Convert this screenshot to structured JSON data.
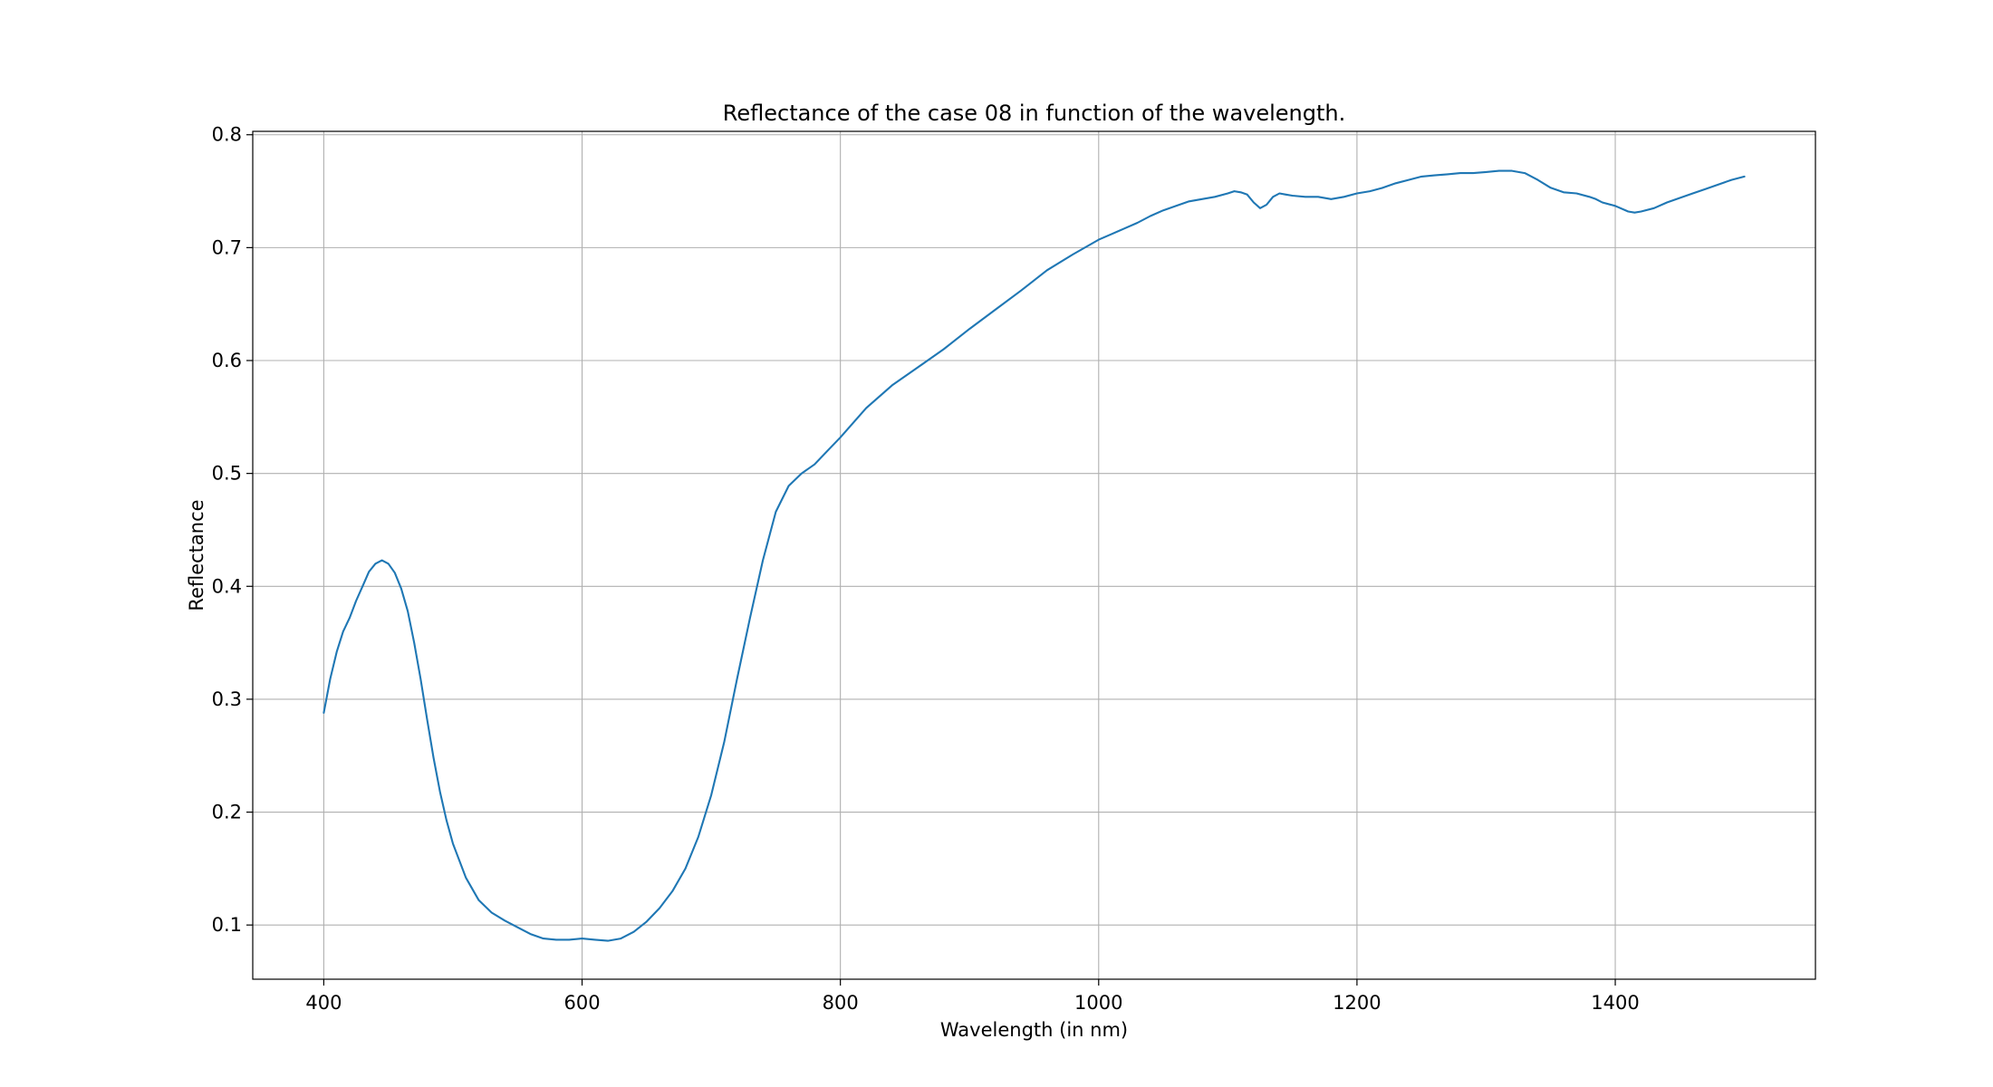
{
  "chart_data": {
    "type": "line",
    "title": "Reflectance of the case 08 in function of the wavelength.",
    "xlabel": "Wavelength (in nm)",
    "ylabel": "Reflectance",
    "xlim": [
      345,
      1555
    ],
    "ylim": [
      0.052,
      0.803
    ],
    "xticks": [
      400,
      600,
      800,
      1000,
      1200,
      1400
    ],
    "xtick_labels": [
      "400",
      "600",
      "800",
      "1000",
      "1200",
      "1400"
    ],
    "yticks": [
      0.1,
      0.2,
      0.3,
      0.4,
      0.5,
      0.6,
      0.7,
      0.8
    ],
    "ytick_labels": [
      "0.1",
      "0.2",
      "0.3",
      "0.4",
      "0.5",
      "0.6",
      "0.7",
      "0.8"
    ],
    "grid": true,
    "colors": {
      "series": "#1f77b4"
    },
    "series": [
      {
        "x": [
          400,
          405,
          410,
          415,
          420,
          425,
          430,
          435,
          440,
          445,
          450,
          455,
          460,
          465,
          470,
          475,
          480,
          485,
          490,
          495,
          500,
          510,
          520,
          530,
          540,
          550,
          560,
          570,
          580,
          590,
          600,
          610,
          620,
          630,
          640,
          650,
          660,
          670,
          680,
          690,
          700,
          710,
          720,
          730,
          740,
          750,
          760,
          770,
          780,
          790,
          800,
          820,
          840,
          860,
          880,
          900,
          920,
          940,
          960,
          980,
          1000,
          1010,
          1020,
          1030,
          1040,
          1050,
          1060,
          1070,
          1080,
          1090,
          1100,
          1105,
          1110,
          1115,
          1120,
          1125,
          1130,
          1135,
          1140,
          1145,
          1150,
          1160,
          1170,
          1180,
          1190,
          1200,
          1210,
          1220,
          1230,
          1240,
          1250,
          1260,
          1270,
          1280,
          1290,
          1300,
          1310,
          1320,
          1330,
          1340,
          1350,
          1360,
          1370,
          1380,
          1385,
          1390,
          1400,
          1410,
          1415,
          1420,
          1430,
          1440,
          1450,
          1460,
          1470,
          1480,
          1490,
          1500
        ],
        "y": [
          0.288,
          0.318,
          0.342,
          0.36,
          0.372,
          0.387,
          0.4,
          0.413,
          0.42,
          0.423,
          0.42,
          0.412,
          0.398,
          0.378,
          0.35,
          0.318,
          0.282,
          0.248,
          0.218,
          0.193,
          0.172,
          0.142,
          0.122,
          0.111,
          0.104,
          0.098,
          0.092,
          0.088,
          0.087,
          0.087,
          0.088,
          0.087,
          0.086,
          0.088,
          0.094,
          0.103,
          0.115,
          0.13,
          0.15,
          0.178,
          0.215,
          0.262,
          0.318,
          0.372,
          0.423,
          0.466,
          0.489,
          0.5,
          0.508,
          0.52,
          0.532,
          0.558,
          0.578,
          0.594,
          0.61,
          0.628,
          0.645,
          0.662,
          0.68,
          0.694,
          0.707,
          0.712,
          0.717,
          0.722,
          0.728,
          0.733,
          0.737,
          0.741,
          0.743,
          0.745,
          0.748,
          0.75,
          0.749,
          0.747,
          0.74,
          0.735,
          0.738,
          0.745,
          0.748,
          0.747,
          0.746,
          0.745,
          0.745,
          0.743,
          0.745,
          0.748,
          0.75,
          0.753,
          0.757,
          0.76,
          0.763,
          0.764,
          0.765,
          0.766,
          0.766,
          0.767,
          0.768,
          0.768,
          0.766,
          0.76,
          0.753,
          0.749,
          0.748,
          0.745,
          0.743,
          0.74,
          0.737,
          0.732,
          0.731,
          0.732,
          0.735,
          0.74,
          0.744,
          0.748,
          0.752,
          0.756,
          0.76,
          0.763
        ]
      }
    ]
  }
}
